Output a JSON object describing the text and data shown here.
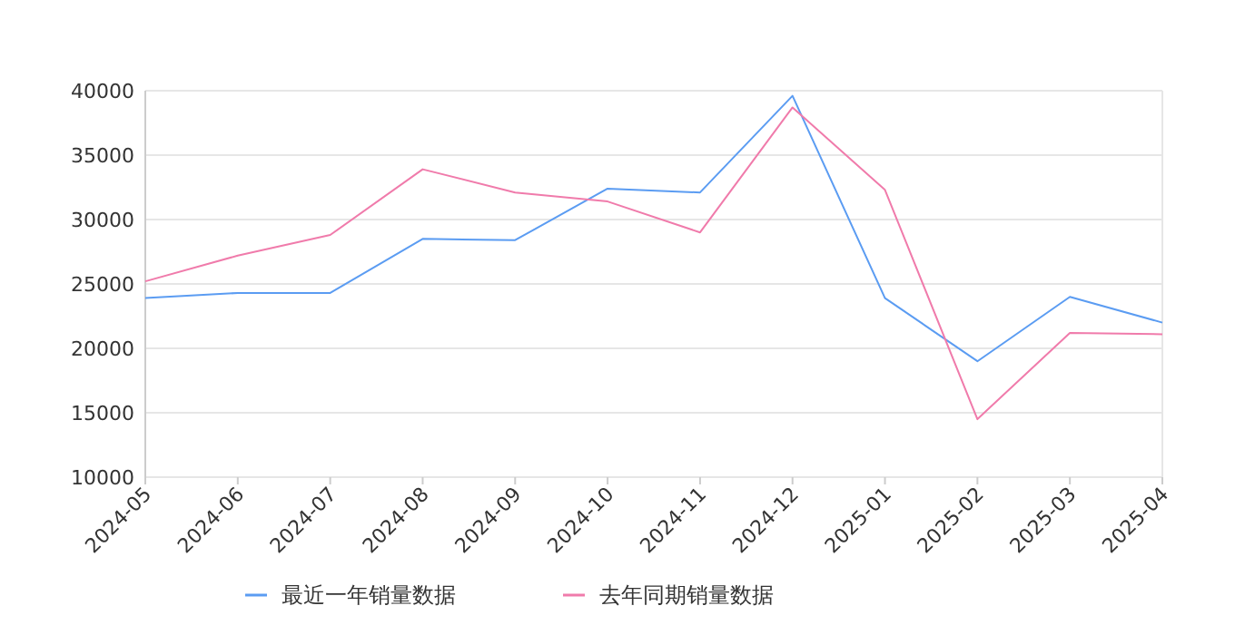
{
  "chart_data": {
    "type": "line",
    "categories": [
      "2024-05",
      "2024-06",
      "2024-07",
      "2024-08",
      "2024-09",
      "2024-10",
      "2024-11",
      "2024-12",
      "2025-01",
      "2025-02",
      "2025-03",
      "2025-04"
    ],
    "series": [
      {
        "name": "最近一年销量数据",
        "color": "#5b9cf2",
        "values": [
          23900,
          24300,
          24300,
          28500,
          28400,
          32400,
          32100,
          39600,
          23900,
          19000,
          24000,
          22000
        ]
      },
      {
        "name": "去年同期销量数据",
        "color": "#f07bab",
        "values": [
          25200,
          27200,
          28800,
          33900,
          32100,
          31400,
          29000,
          38700,
          32300,
          14500,
          21200,
          21100
        ]
      }
    ],
    "ylim": [
      10000,
      40000
    ],
    "yticks": [
      10000,
      15000,
      20000,
      25000,
      30000,
      35000,
      40000
    ],
    "grid": "y",
    "legend": "bottom"
  }
}
